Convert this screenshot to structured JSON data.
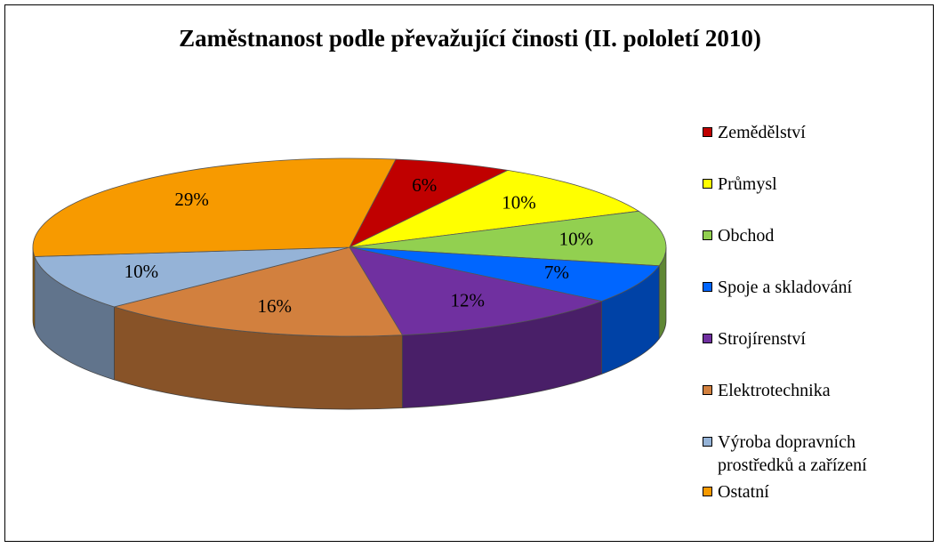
{
  "chart_data": {
    "type": "pie3d",
    "title": "Zaměstnanost podle převažující činosti (II. pololetí 2010)",
    "categories": [
      "Zemědělství",
      "Průmysl",
      "Obchod",
      "Spoje a skladování",
      "Strojírenství",
      "Elektrotechnika",
      "Výroba dopravních prostředků a zařízení",
      "Ostatní"
    ],
    "values": [
      6,
      10,
      10,
      7,
      12,
      16,
      10,
      29
    ],
    "value_labels": [
      "6%",
      "10%",
      "10%",
      "7%",
      "12%",
      "16%",
      "10%",
      "29%"
    ],
    "colors": [
      "#c00000",
      "#ffff00",
      "#92d050",
      "#0066ff",
      "#7030a0",
      "#d2803e",
      "#95b3d7",
      "#f79a00"
    ],
    "legend": "right"
  }
}
